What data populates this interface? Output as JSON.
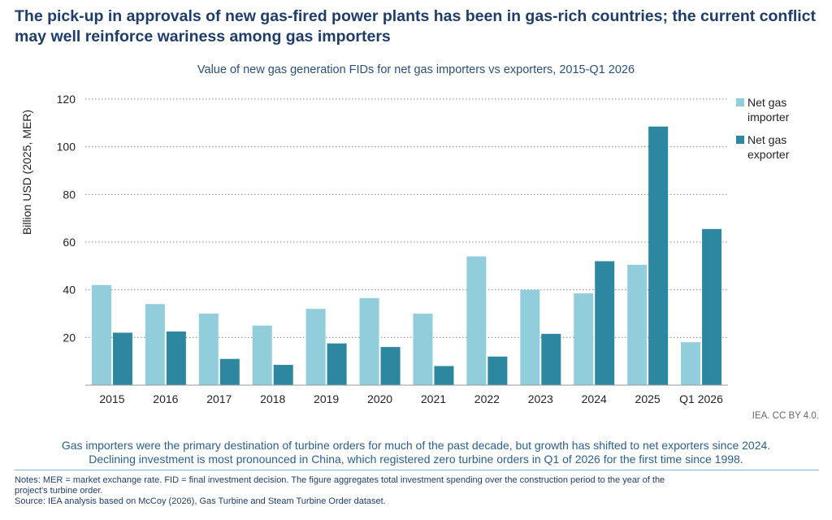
{
  "headline": "The pick-up in approvals of new gas-fired power plants has been in gas-rich countries; the current conflict may well reinforce wariness among gas importers",
  "credit": "IEA. CC BY 4.0.",
  "takeaway": {
    "line1": "Gas importers were the primary destination of turbine orders for much of the past decade, but growth has shifted to net exporters since 2024.",
    "line2": "Declining investment is most pronounced in China, which registered zero turbine orders in Q1 of 2026 for the first time since 1998."
  },
  "notes": {
    "line1": "Notes: MER = market exchange rate. FID = final investment decision. The figure aggregates total investment spending over the construction period to the year of the",
    "line2": "project's turbine order.",
    "source": "Source: IEA analysis based on McCoy (2026), Gas Turbine and Steam Turbine Order dataset."
  },
  "colors": {
    "importer": "#92cddb",
    "exporter": "#2e87a0",
    "title": "#1f3d6b"
  },
  "chart_data": {
    "type": "bar",
    "title": "Value of new gas generation FIDs for net gas importers vs exporters, 2015-Q1 2026",
    "xlabel": "",
    "ylabel": "Billion USD (2025, MER)",
    "ylim": [
      0,
      120
    ],
    "yticks": [
      20,
      40,
      60,
      80,
      100,
      120
    ],
    "grid": true,
    "legend_position": "right",
    "categories": [
      "2015",
      "2016",
      "2017",
      "2018",
      "2019",
      "2020",
      "2021",
      "2022",
      "2023",
      "2024",
      "2025",
      "Q1 2026"
    ],
    "series": [
      {
        "name": "Net gas importer",
        "values": [
          42,
          34,
          30,
          25,
          32,
          36.5,
          30,
          54,
          40,
          38.5,
          50.5,
          18
        ]
      },
      {
        "name": "Net gas exporter",
        "values": [
          22,
          22.5,
          11,
          8.5,
          17.5,
          16,
          8,
          12,
          21.5,
          52,
          108.5,
          65.5
        ]
      }
    ]
  }
}
